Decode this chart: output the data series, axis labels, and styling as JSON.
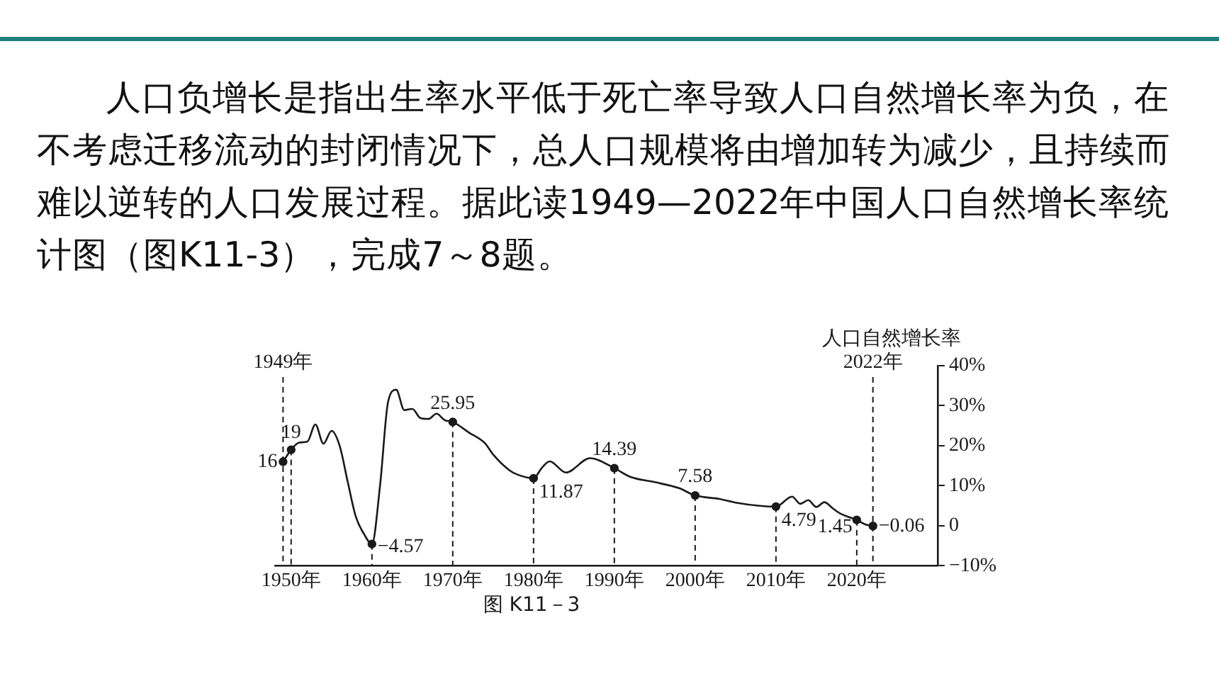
{
  "chart_data": {
    "type": "line",
    "title": "人口负增长是指出生率水平低于死亡率导致人口自然增长率为负，在不考虑迁移流动的封闭情况下，总人口规模将由增加转为减少，且持续而难以逆转的人口发展过程。据此读1949—2022年中国人口自然增长率统计图（图K11-3），完成7～8题。",
    "ylabel": "人口自然增长率",
    "annotations": [
      "图 K11－3"
    ],
    "series": [
      {
        "color": "#1a1a1a",
        "marker": "none",
        "x": [
          1949,
          1950,
          1951,
          1952,
          1953,
          1954,
          1955,
          1956,
          1957,
          1958,
          1959,
          1960,
          1961,
          1962,
          1963,
          1964,
          1965,
          1966,
          1967,
          1968,
          1969,
          1970,
          1972,
          1974,
          1975,
          1977,
          1978,
          1980,
          1981,
          1982,
          1984,
          1987,
          1990,
          1992,
          1995,
          1998,
          2000,
          2003,
          2005,
          2008,
          2010,
          2012,
          2013,
          2014,
          2015,
          2016,
          2017,
          2018,
          2019,
          2020,
          2021,
          2022
        ],
        "values": [
          16,
          19,
          20.8,
          21,
          25.3,
          20.5,
          23.7,
          20,
          11,
          2.3,
          -2,
          -4.57,
          10,
          31,
          34,
          28.9,
          29.2,
          26.9,
          26.7,
          28,
          26.4,
          25.95,
          23.3,
          20.6,
          17.8,
          13.9,
          12.8,
          11.87,
          14.4,
          16.1,
          13.3,
          16.9,
          14.39,
          12.2,
          10.9,
          9.4,
          7.58,
          6.7,
          5.8,
          5,
          4.79,
          7.3,
          5.5,
          6.4,
          4.7,
          5.9,
          4.4,
          3,
          2.2,
          1.45,
          0.4,
          -0.06
        ]
      },
      {
        "type": "scatter",
        "color": "#1a1a1a",
        "marker": "circle",
        "x": [
          1949,
          1950,
          1960,
          1970,
          1980,
          1990,
          2000,
          2010,
          2020,
          2022
        ],
        "values": [
          16,
          19,
          -4.57,
          25.95,
          11.87,
          14.39,
          7.58,
          4.79,
          1.45,
          -0.06
        ],
        "value_labels": [
          "16",
          "19",
          "−4.57",
          "25.95",
          "11.87",
          "14.39",
          "7.58",
          "4.79",
          "1.45",
          "−0.06"
        ]
      }
    ],
    "xlim": [
      1948,
      2030
    ],
    "xticks": [
      {
        "value": 1950,
        "label": "1950年"
      },
      {
        "value": 1960,
        "label": "1960年"
      },
      {
        "value": 1970,
        "label": "1970年"
      },
      {
        "value": 1980,
        "label": "1980年"
      },
      {
        "value": 1990,
        "label": "1990年"
      },
      {
        "value": 2000,
        "label": "2000年"
      },
      {
        "value": 2010,
        "label": "2010年"
      },
      {
        "value": 2020,
        "label": "2020年"
      }
    ],
    "ylim": [
      -10,
      40
    ],
    "yticks": [
      {
        "value": -10,
        "label": "−10%"
      },
      0,
      {
        "value": 10,
        "label": "10%"
      },
      {
        "value": 20,
        "label": "20%"
      },
      {
        "value": 30,
        "label": "30%"
      },
      {
        "value": 40,
        "label": "40%"
      }
    ],
    "ref_lines": [
      {
        "axis": "x",
        "value": 1949,
        "label": "1949年",
        "line_style": "dashed"
      },
      {
        "axis": "x",
        "value": 1950,
        "line_style": "dashed"
      },
      {
        "axis": "x",
        "value": 1960,
        "line_style": "dashed"
      },
      {
        "axis": "x",
        "value": 1970,
        "line_style": "dashed"
      },
      {
        "axis": "x",
        "value": 1980,
        "line_style": "dashed"
      },
      {
        "axis": "x",
        "value": 1990,
        "line_style": "dashed"
      },
      {
        "axis": "x",
        "value": 2000,
        "line_style": "dashed"
      },
      {
        "axis": "x",
        "value": 2010,
        "line_style": "dashed"
      },
      {
        "axis": "x",
        "value": 2020,
        "line_style": "dashed"
      },
      {
        "axis": "x",
        "value": 2022,
        "label": "2022年",
        "line_style": "dashed"
      }
    ],
    "grid": false,
    "legend": false,
    "line_style": "solid"
  }
}
